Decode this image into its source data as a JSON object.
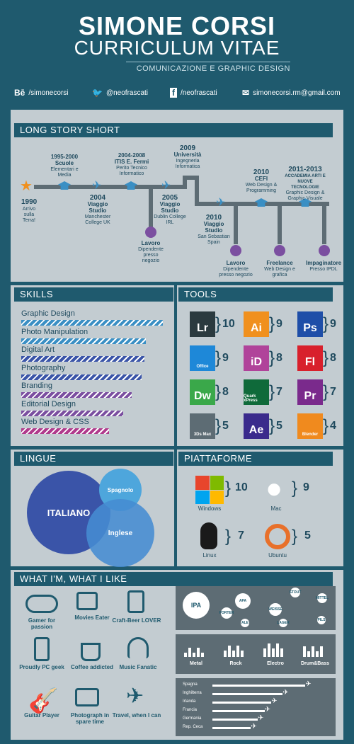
{
  "header": {
    "name": "SIMONE CORSI",
    "title": "CURRICULUM VITAE",
    "subtitle": "COMUNICAZIONE E GRAPHIC DESIGN"
  },
  "social": [
    {
      "icon": "Bē",
      "handle": "/simonecorsi"
    },
    {
      "icon": "bird-icon",
      "handle": "@neofrascati"
    },
    {
      "icon": "f",
      "handle": "/neofrascati"
    },
    {
      "icon": "mail-icon",
      "handle": "simonecorsi.rm@gmail.com"
    }
  ],
  "sections": {
    "story": "LONG STORY SHORT",
    "skills": "SKILLS",
    "tools": "TOOLS",
    "lingue": "LINGUE",
    "piattaforme": "PIATTAFORME",
    "like": "WHAT I'M, WHAT I LIKE"
  },
  "timeline": [
    {
      "year": "1990",
      "text": "Arrivo sulla Terra!"
    },
    {
      "year": "1995-2000",
      "title": "Scuole",
      "text": "Elementari e Media"
    },
    {
      "year": "2004",
      "title": "Viaggio Studio",
      "text": "Manchester College UK"
    },
    {
      "year": "2004-2008",
      "title": "ITIS E. Fermi",
      "text": "Perito Tecnico Informatico"
    },
    {
      "title": "Lavoro",
      "text": "Dipendente presso negozio"
    },
    {
      "year": "2005",
      "title": "Viaggio Studio",
      "text": "Dublin College IRL"
    },
    {
      "year": "2009",
      "title": "Università",
      "text": "Ingegneria Informatica"
    },
    {
      "year": "2010",
      "title": "Viaggio Studio",
      "text": "San Sebastian Spain"
    },
    {
      "title": "Lavoro",
      "text": "Dipendente presso negozio"
    },
    {
      "year": "2010",
      "title": "CEFI",
      "text": "Web Design & Programming"
    },
    {
      "title": "Freelance",
      "text": "Web Design e grafica"
    },
    {
      "year": "2011-2013",
      "title": "ACCADEMIA ARTI E NUOVE TECNOLOGIE",
      "text": "Graphic Design & Graphic Visuale"
    },
    {
      "title": "Impaginatore",
      "text": "Presso IPDL"
    }
  ],
  "skills": [
    {
      "label": "Graphic Design",
      "value": 100,
      "color": "#3a8fc4"
    },
    {
      "label": "Photo Manipulation",
      "value": 88,
      "color": "#3a8fc4"
    },
    {
      "label": "Digital Art",
      "value": 87,
      "color": "#3a54a8"
    },
    {
      "label": "Photography",
      "value": 85,
      "color": "#3a54a8"
    },
    {
      "label": "Branding",
      "value": 78,
      "color": "#7b4fa0"
    },
    {
      "label": "Editorial Design",
      "value": 72,
      "color": "#7b4fa0"
    },
    {
      "label": "Web Design & CSS",
      "value": 62,
      "color": "#b03a8c"
    }
  ],
  "tools": [
    {
      "abbr": "Lr",
      "score": "10",
      "color": "#2b3a3f"
    },
    {
      "abbr": "Ai",
      "score": "9",
      "color": "#f0901e"
    },
    {
      "abbr": "Ps",
      "score": "9",
      "color": "#1e4ea8"
    },
    {
      "abbr": "Office",
      "score": "9",
      "color": "#1e88d8"
    },
    {
      "abbr": "iD",
      "score": "8",
      "color": "#b0439a"
    },
    {
      "abbr": "Fl",
      "score": "8",
      "color": "#d8202c"
    },
    {
      "abbr": "Dw",
      "score": "8",
      "color": "#3aa84a"
    },
    {
      "abbr": "Quark xPress",
      "score": "7",
      "color": "#0f6a3a"
    },
    {
      "abbr": "Pr",
      "score": "7",
      "color": "#7a2a8c"
    },
    {
      "abbr": "3Ds Max",
      "score": "5",
      "color": "#5d6c74"
    },
    {
      "abbr": "Ae",
      "score": "5",
      "color": "#3a2a8c"
    },
    {
      "abbr": "Blender",
      "score": "4",
      "color": "#f08a1e"
    }
  ],
  "lingue": [
    {
      "name": "ITALIANO"
    },
    {
      "name": "Spagnolo"
    },
    {
      "name": "Inglese"
    }
  ],
  "piattaforme": [
    {
      "name": "Windows",
      "score": "10"
    },
    {
      "name": "Mac",
      "score": "9"
    },
    {
      "name": "Linux",
      "score": "7"
    },
    {
      "name": "Ubuntu",
      "score": "5"
    }
  ],
  "likes": [
    {
      "label": "Gamer for passion"
    },
    {
      "label": "Movies Eater"
    },
    {
      "label": "Craft-Beer LOVER"
    },
    {
      "label": "Proudly PC geek"
    },
    {
      "label": "Coffee addicted"
    },
    {
      "label": "Music Fanatic"
    },
    {
      "label": "Guitar Player"
    },
    {
      "label": "Photograph in spare time"
    },
    {
      "label": "Travel, when I can"
    }
  ],
  "beers": [
    "IPA",
    "APA",
    "STOUT",
    "MITTEL",
    "PORTER",
    "WEISSE",
    "LAGER",
    "PILS",
    "ALE"
  ],
  "genres": [
    "Metal",
    "Rock",
    "Electro",
    "Drum&Bass"
  ],
  "travel": [
    {
      "country": "Spagna",
      "value": 0.82
    },
    {
      "country": "Inghilterra",
      "value": 0.62
    },
    {
      "country": "Irlanda",
      "value": 0.52
    },
    {
      "country": "Francia",
      "value": 0.46
    },
    {
      "country": "Germania",
      "value": 0.4
    },
    {
      "country": "Rep. Ceca",
      "value": 0.34
    }
  ]
}
